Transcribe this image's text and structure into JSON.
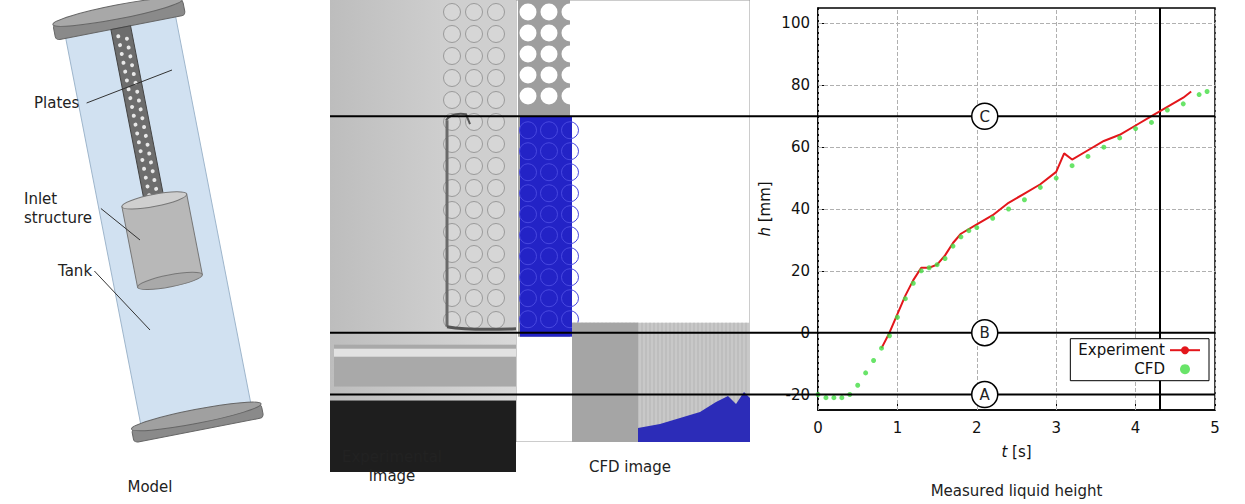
{
  "model": {
    "labels": [
      "Plates",
      "Inlet structure",
      "Tank"
    ],
    "caption": "Model"
  },
  "images": {
    "captions": [
      "Experimental image",
      "CFD image"
    ]
  },
  "chart_data": {
    "type": "line",
    "caption": "Measured liquid height",
    "x_label": "t [s]",
    "y_label": "h [mm]",
    "xlim": [
      0,
      5
    ],
    "xticks": [
      0,
      1,
      2,
      3,
      4,
      5
    ],
    "ylim": [
      -25,
      105
    ],
    "yticks": [
      -20,
      0,
      20,
      40,
      60,
      80,
      100
    ],
    "grid": true,
    "legend": "lower right",
    "hlines": [
      {
        "label": "A",
        "value": -20
      },
      {
        "label": "B",
        "value": 0
      },
      {
        "label": "C",
        "value": 70
      }
    ],
    "vlines": [
      4.3
    ],
    "series": [
      {
        "name": "Experiment",
        "type": "line",
        "color": "#e3161b",
        "line_style": "solid",
        "x": [
          0.8,
          0.9,
          1.0,
          1.1,
          1.2,
          1.3,
          1.4,
          1.5,
          1.6,
          1.7,
          1.8,
          2.0,
          2.2,
          2.4,
          2.6,
          2.8,
          3.0,
          3.1,
          3.2,
          3.4,
          3.6,
          3.8,
          4.0,
          4.2,
          4.4,
          4.6,
          4.7
        ],
        "values": [
          -5,
          0,
          6,
          12,
          17,
          21,
          21,
          22,
          25,
          29,
          32,
          35,
          38,
          42,
          45,
          48,
          52,
          58,
          56,
          59,
          62,
          64,
          67,
          70,
          73,
          76,
          78
        ]
      },
      {
        "name": "CFD",
        "type": "scatter",
        "color": "#44dd44",
        "marker": "circle",
        "x": [
          0,
          0.1,
          0.2,
          0.3,
          0.4,
          0.5,
          0.6,
          0.7,
          0.8,
          0.9,
          1.0,
          1.1,
          1.2,
          1.3,
          1.4,
          1.5,
          1.6,
          1.7,
          1.8,
          1.9,
          2.0,
          2.2,
          2.4,
          2.6,
          2.8,
          3.0,
          3.2,
          3.4,
          3.6,
          3.8,
          4.0,
          4.2,
          4.4,
          4.6,
          4.8,
          4.9
        ],
        "values": [
          -20,
          -21,
          -21,
          -21,
          -20,
          -17,
          -13,
          -9,
          -5,
          -1,
          5,
          11,
          16,
          20,
          21,
          22,
          24,
          28,
          31,
          33,
          34,
          37,
          40,
          43,
          47,
          50,
          54,
          57,
          60,
          63,
          66,
          68,
          72,
          74,
          77,
          78
        ]
      }
    ]
  }
}
